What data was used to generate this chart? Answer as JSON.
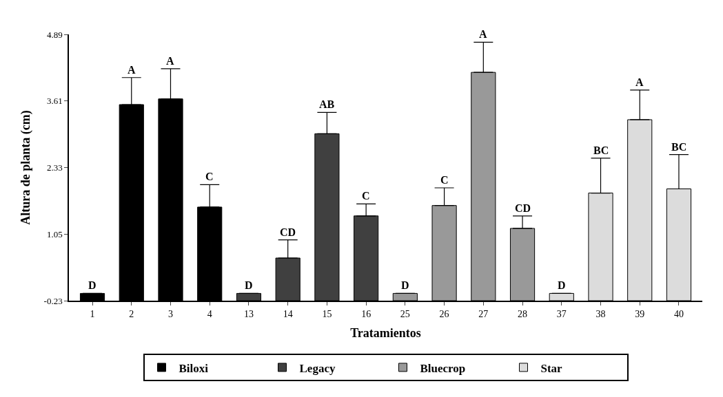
{
  "chart_data": {
    "type": "bar",
    "xlabel": "Tratamientos",
    "ylabel": "Altura de planta (cm)",
    "categories": [
      "1",
      "2",
      "3",
      "4",
      "13",
      "14",
      "15",
      "16",
      "25",
      "26",
      "27",
      "28",
      "37",
      "38",
      "39",
      "40"
    ],
    "series": [
      {
        "name": "Biloxi",
        "color": "#000000",
        "values": [
          0.14,
          3.77,
          3.88,
          1.8,
          null,
          null,
          null,
          null,
          null,
          null,
          null,
          null,
          null,
          null,
          null,
          null
        ],
        "base": [
          -0.23,
          -0.23,
          -0.23,
          -0.23,
          null,
          null,
          null,
          null,
          null,
          null,
          null,
          null,
          null,
          null,
          null,
          null
        ],
        "errors": [
          null,
          [
            3.54,
            4.06
          ],
          [
            3.65,
            4.23
          ],
          [
            1.57,
            2.0
          ],
          null,
          null,
          null,
          null,
          null,
          null,
          null,
          null,
          null,
          null,
          null,
          null
        ]
      },
      {
        "name": "Legacy",
        "color": "#404040",
        "values": [
          null,
          null,
          null,
          null,
          0.14,
          0.82,
          3.21,
          1.63,
          null,
          null,
          null,
          null,
          null,
          null,
          null,
          null
        ],
        "base": [
          null,
          null,
          null,
          null,
          -0.23,
          -0.23,
          -0.23,
          -0.23,
          null,
          null,
          null,
          null,
          null,
          null,
          null,
          null
        ],
        "errors": [
          null,
          null,
          null,
          null,
          null,
          [
            0.59,
            0.94
          ],
          [
            2.98,
            3.39
          ],
          [
            1.4,
            1.63
          ],
          null,
          null,
          null,
          null,
          null,
          null,
          null,
          null
        ]
      },
      {
        "name": "Bluecrop",
        "color": "#999999",
        "values": [
          null,
          null,
          null,
          null,
          null,
          null,
          null,
          null,
          0.14,
          1.83,
          4.39,
          1.39,
          null,
          null,
          null,
          null
        ],
        "base": [
          null,
          null,
          null,
          null,
          null,
          null,
          null,
          null,
          -0.23,
          -0.23,
          -0.23,
          -0.23,
          null,
          null,
          null,
          null
        ],
        "errors": [
          null,
          null,
          null,
          null,
          null,
          null,
          null,
          null,
          null,
          [
            1.6,
            1.94
          ],
          [
            4.16,
            4.74
          ],
          [
            1.16,
            1.4
          ],
          null,
          null,
          null,
          null
        ]
      },
      {
        "name": "Star",
        "color": "#dcdcdc",
        "values": [
          null,
          null,
          null,
          null,
          null,
          null,
          null,
          null,
          null,
          null,
          null,
          null,
          0.14,
          2.07,
          3.48,
          2.15
        ],
        "base": [
          null,
          null,
          null,
          null,
          null,
          null,
          null,
          null,
          null,
          null,
          null,
          null,
          -0.23,
          -0.23,
          -0.23,
          -0.23
        ],
        "errors": [
          null,
          null,
          null,
          null,
          null,
          null,
          null,
          null,
          null,
          null,
          null,
          null,
          null,
          [
            1.84,
            2.51
          ],
          [
            3.25,
            3.82
          ],
          [
            1.92,
            2.58
          ]
        ]
      }
    ],
    "ylim": [
      -0.23,
      4.89
    ],
    "yticks": [
      -0.23,
      1.05,
      2.33,
      3.61,
      4.89
    ],
    "legend": "bottom",
    "annotations": [
      {
        "text": "D",
        "x": "1",
        "y": -0.09
      },
      {
        "text": "A",
        "x": "2",
        "y": 4.06
      },
      {
        "text": "A",
        "x": "3",
        "y": 4.23
      },
      {
        "text": "C",
        "x": "4",
        "y": 2.0
      },
      {
        "text": "D",
        "x": "13",
        "y": -0.09
      },
      {
        "text": "CD",
        "x": "14",
        "y": 0.94
      },
      {
        "text": "AB",
        "x": "15",
        "y": 3.39
      },
      {
        "text": "C",
        "x": "16",
        "y": 1.63
      },
      {
        "text": "D",
        "x": "25",
        "y": -0.09
      },
      {
        "text": "C",
        "x": "26",
        "y": 1.94
      },
      {
        "text": "A",
        "x": "27",
        "y": 4.74
      },
      {
        "text": "CD",
        "x": "28",
        "y": 1.4
      },
      {
        "text": "D",
        "x": "37",
        "y": -0.09
      },
      {
        "text": "BC",
        "x": "38",
        "y": 2.51
      },
      {
        "text": "A",
        "x": "39",
        "y": 3.82
      },
      {
        "text": "BC",
        "x": "40",
        "y": 2.58
      }
    ]
  }
}
